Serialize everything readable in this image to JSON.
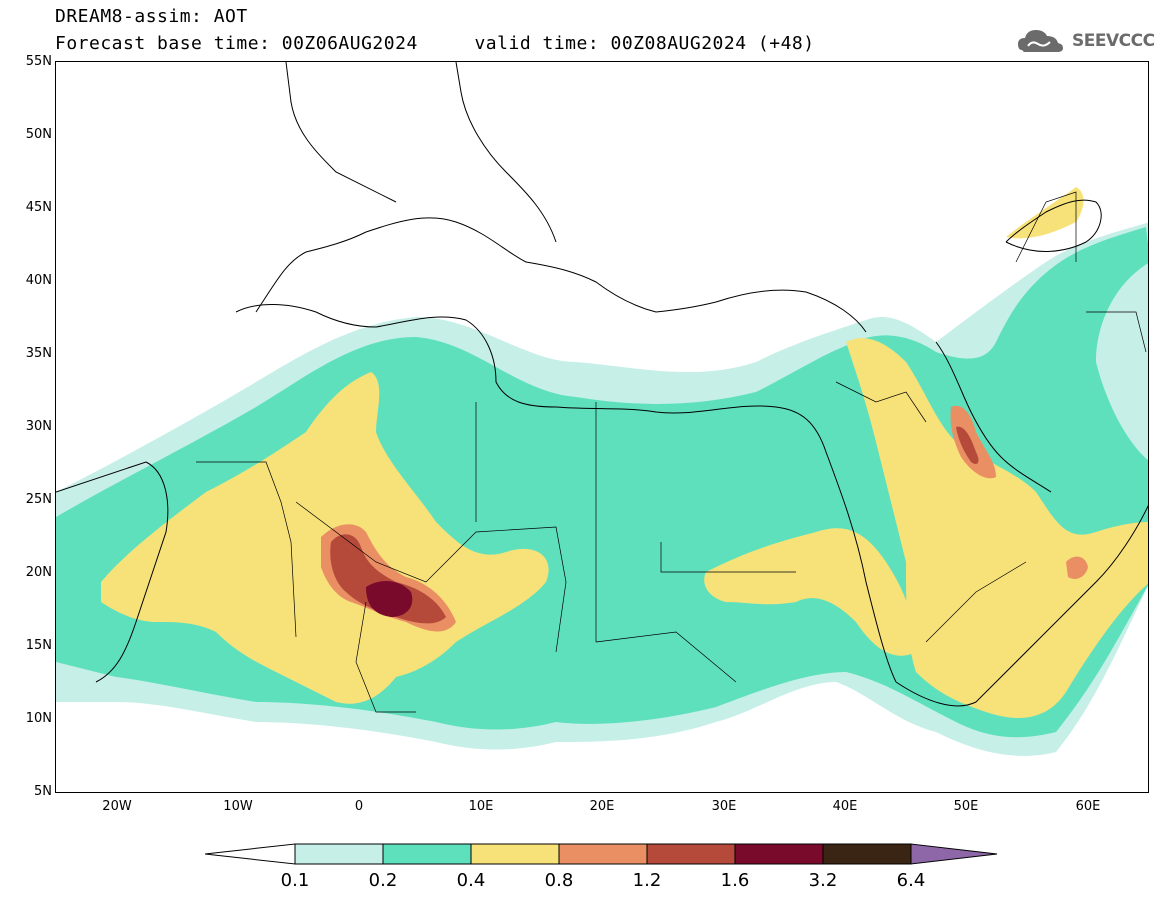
{
  "title": {
    "line1": "DREAM8-assim: AOT",
    "line2": "Forecast base time: 00Z06AUG2024     valid time: 00Z08AUG2024 (+48)"
  },
  "logo": {
    "text": "SEEVCCC",
    "icon": "cloud-icon",
    "color": "#6b6b6b"
  },
  "map": {
    "lat_labels": [
      "55N",
      "50N",
      "45N",
      "40N",
      "35N",
      "30N",
      "25N",
      "20N",
      "15N",
      "10N",
      "5N"
    ],
    "lon_labels": [
      "20W",
      "10W",
      "0",
      "10E",
      "20E",
      "30E",
      "40E",
      "50E",
      "60E"
    ],
    "lat_range": [
      5,
      55
    ],
    "lon_range": [
      -25,
      65
    ]
  },
  "colorbar": {
    "labels": [
      "0.1",
      "0.2",
      "0.4",
      "0.8",
      "1.2",
      "1.6",
      "3.2",
      "6.4"
    ],
    "colors": {
      "under": "#ffffff",
      "c1": "#c6efe8",
      "c2": "#5ee0bd",
      "c3": "#f7e27a",
      "c4": "#ea8f64",
      "c5": "#b54a3b",
      "c6": "#7a0a2c",
      "c7": "#3a2414",
      "over": "#8e67a8"
    }
  }
}
